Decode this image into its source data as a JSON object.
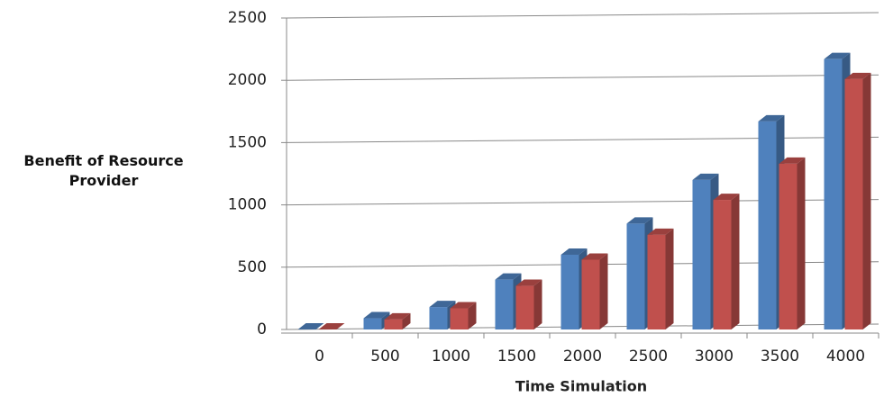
{
  "chart_data": {
    "type": "bar3d",
    "y_label": "Benefit of Resource Provider",
    "x_label": "Time Simulation",
    "categories": [
      "0",
      "500",
      "1000",
      "1500",
      "2000",
      "2500",
      "3000",
      "3500",
      "4000"
    ],
    "series": [
      {
        "color": "#4f81bd",
        "values": [
          0,
          90,
          180,
          400,
          600,
          850,
          1200,
          1670,
          2170
        ]
      },
      {
        "color": "#c0504d",
        "values": [
          0,
          80,
          170,
          350,
          560,
          760,
          1040,
          1330,
          2010
        ]
      }
    ],
    "ylim": [
      0,
      2500
    ],
    "yticks": [
      0,
      500,
      1000,
      1500,
      2000,
      2500
    ],
    "grid": true
  }
}
